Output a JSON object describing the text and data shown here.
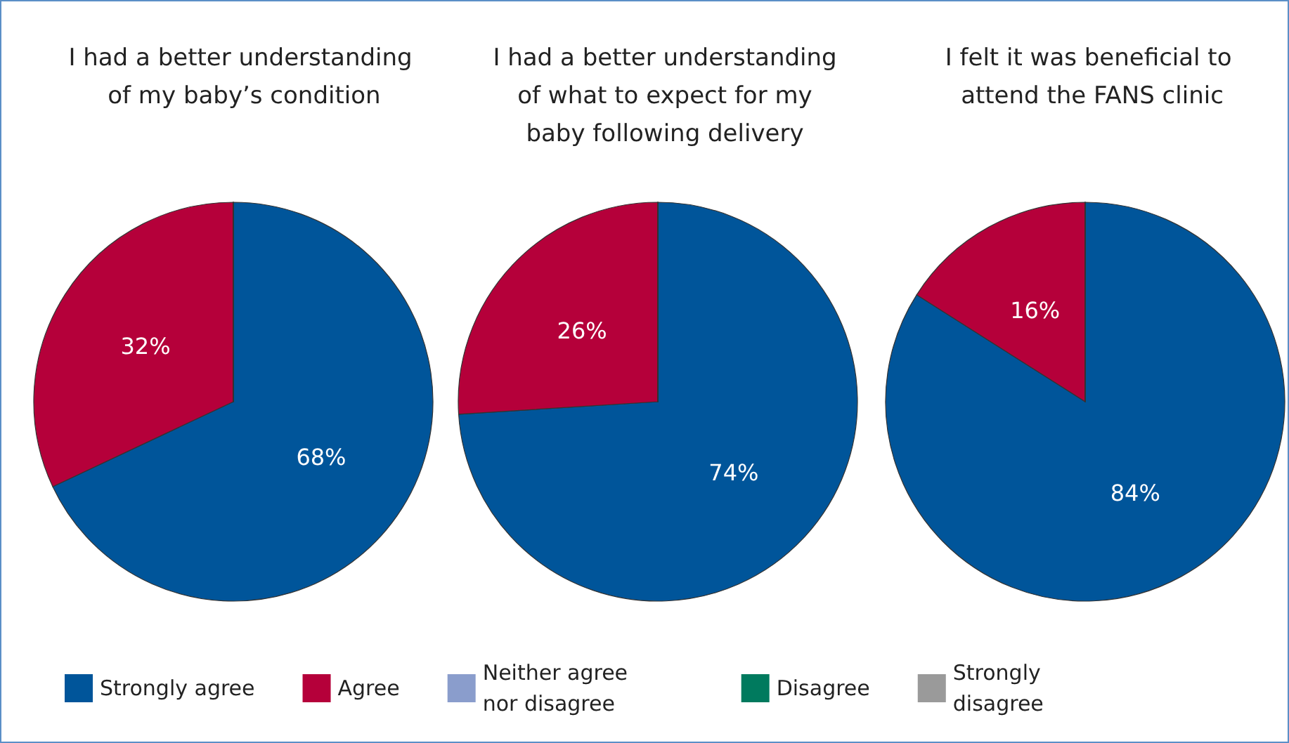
{
  "chart_data": [
    {
      "type": "pie",
      "title": "I had a better understanding of my baby’s condition",
      "categories": [
        "Strongly agree",
        "Agree",
        "Neither agree nor disagree",
        "Disagree",
        "Strongly disagree"
      ],
      "values": [
        68,
        32,
        0,
        0,
        0
      ],
      "value_labels": [
        "68%",
        "32%",
        null,
        null,
        null
      ],
      "colors": [
        "#00559a",
        "#b5003a",
        "#8a9dcc",
        "#007a5e",
        "#9a9a9a"
      ],
      "legend": "bottom"
    },
    {
      "type": "pie",
      "title": "I had a better understanding of what to expect for my baby following delivery",
      "categories": [
        null,
        null,
        null,
        null,
        null
      ],
      "values": [
        74,
        26,
        0,
        0,
        0
      ],
      "value_labels": [
        "74%",
        "26%",
        null,
        null,
        null
      ],
      "colors": [
        "#00559a",
        "#b5003a",
        "#8a9dcc",
        "#007a5e",
        "#9a9a9a"
      ]
    },
    {
      "type": "pie",
      "title": "I felt it was beneficial to attend the FANS clinic",
      "categories": [
        null,
        null,
        null,
        null,
        null
      ],
      "values": [
        84,
        16,
        0,
        0,
        0
      ],
      "value_labels": [
        "84%",
        "16%",
        null,
        null,
        null
      ],
      "colors": [
        "#00559a",
        "#b5003a",
        "#8a9dcc",
        "#007a5e",
        "#9a9a9a"
      ]
    }
  ]
}
